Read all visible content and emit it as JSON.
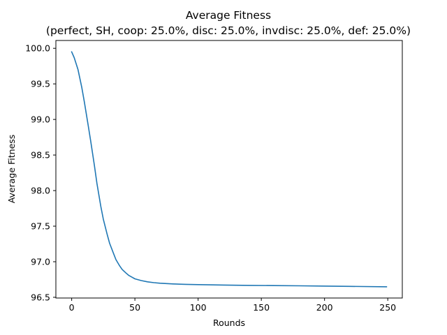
{
  "chart_data": {
    "type": "line",
    "title": "Average Fitness",
    "subtitle": "(perfect, SH, coop: 25.0%, disc: 25.0%, invdisc: 25.0%, def: 25.0%)",
    "xlabel": "Rounds",
    "ylabel": "Average Fitness",
    "xlim": [
      -12.5,
      261.5
    ],
    "ylim": [
      96.49,
      100.11
    ],
    "xticks": [
      0,
      50,
      100,
      150,
      200,
      250
    ],
    "yticks": [
      96.5,
      97.0,
      97.5,
      98.0,
      98.5,
      99.0,
      99.5,
      100.0
    ],
    "xtick_labels": [
      "0",
      "50",
      "100",
      "150",
      "200",
      "250"
    ],
    "ytick_labels": [
      "96.5",
      "97.0",
      "97.5",
      "98.0",
      "98.5",
      "99.0",
      "99.5",
      "100.0"
    ],
    "grid": false,
    "series": [
      {
        "color": "#1f77b4",
        "x": [
          0,
          2,
          5,
          8,
          10,
          13,
          15,
          18,
          20,
          23,
          25,
          28,
          30,
          33,
          35,
          38,
          40,
          43,
          45,
          48,
          50,
          55,
          60,
          65,
          70,
          80,
          90,
          100,
          120,
          140,
          160,
          180,
          200,
          220,
          249
        ],
        "y": [
          99.95,
          99.87,
          99.7,
          99.45,
          99.25,
          98.92,
          98.7,
          98.35,
          98.1,
          97.78,
          97.6,
          97.39,
          97.26,
          97.12,
          97.03,
          96.94,
          96.89,
          96.84,
          96.81,
          96.78,
          96.76,
          96.735,
          96.718,
          96.706,
          96.698,
          96.688,
          96.682,
          96.678,
          96.672,
          96.668,
          96.665,
          96.662,
          96.658,
          96.654,
          96.648
        ]
      }
    ]
  }
}
